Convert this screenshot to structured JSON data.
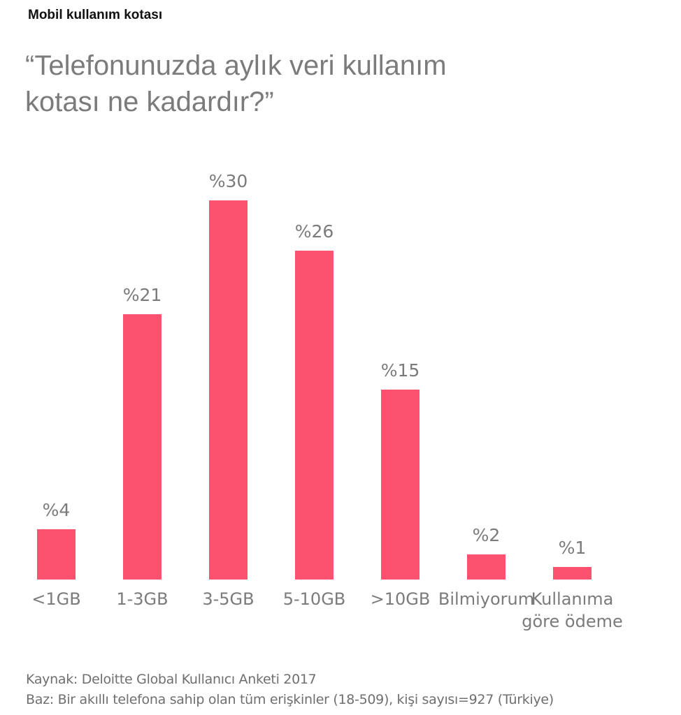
{
  "header": {
    "subtitle": "Mobil kullanım kotası",
    "title": "“Telefonunuzda aylık veri kullanım kotası ne kadardır?”"
  },
  "colors": {
    "bar": "#fd5170",
    "text": "#7b7b7b"
  },
  "chart_data": {
    "type": "bar",
    "title": "“Telefonunuzda aylık veri kullanım kotası ne kadardır?”",
    "subtitle": "Mobil kullanım kotası",
    "categories": [
      "<1GB",
      "1-3GB",
      "3-5GB",
      "5-10GB",
      ">10GB",
      "Bilmiyorum",
      "Kullanıma\ngöre ödeme"
    ],
    "values": [
      4,
      21,
      30,
      26,
      15,
      2,
      1
    ],
    "value_labels": [
      "%4",
      "%21",
      "%30",
      "%26",
      "%15",
      "%2",
      "%1"
    ],
    "unit": "%",
    "xlabel": "",
    "ylabel": "",
    "ylim": [
      0,
      30
    ],
    "grid": false,
    "legend": "none"
  },
  "footer": {
    "source": "Kaynak: Deloitte Global Kullanıcı Anketi 2017",
    "base": "Baz: Bir akıllı telefona sahip olan tüm erişkinler (18-509), kişi sayısı=927 (Türkiye)"
  }
}
